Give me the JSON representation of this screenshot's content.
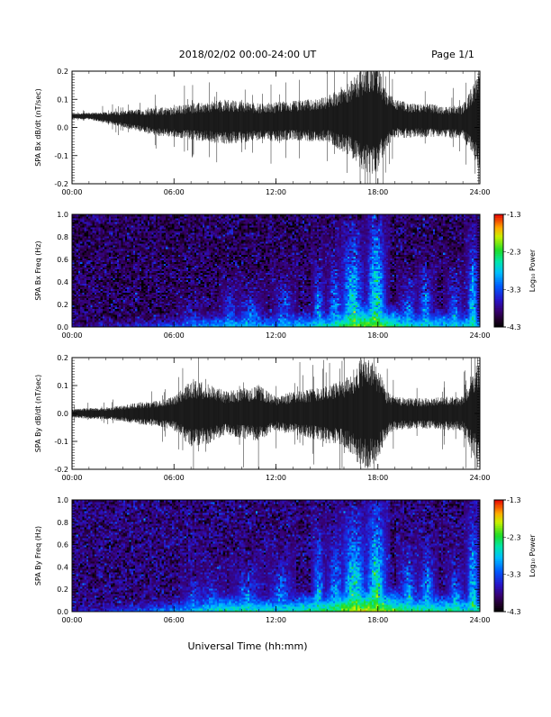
{
  "header": {
    "title": "2018/02/02  00:00-24:00 UT",
    "page": "Page 1/1"
  },
  "footer": {
    "xlabel": "Universal Time (hh:mm)"
  },
  "colorbar": {
    "label": "Log₁₀ Power",
    "range": [
      -4.3,
      -1.3
    ],
    "tick_labels": [
      "-1.3",
      "-2.3",
      "-3.3",
      "-4.3"
    ],
    "tick_values": [
      -1.3,
      -2.3,
      -3.3,
      -4.3
    ]
  },
  "chart_data": [
    {
      "type": "line",
      "id": "bx-wave",
      "ylabel": "SPA Bx dB/dt (nT/sec)",
      "xlabel": "",
      "x_ticks": [
        "00:00",
        "06:00",
        "12:00",
        "18:00",
        "24:00"
      ],
      "y_ticks": [
        "0.2",
        "0.1",
        "0.0",
        "-0.1",
        "-0.2"
      ],
      "xlim": [
        0,
        24
      ],
      "ylim": [
        -0.2,
        0.2
      ],
      "series": [
        {
          "x": [
            0,
            1,
            2,
            3,
            4,
            5,
            6,
            7,
            8,
            9,
            10,
            11,
            12,
            13,
            14,
            15,
            16,
            16.5,
            17,
            17.5,
            18,
            18.5,
            19,
            20,
            21,
            22,
            23,
            23.5,
            24
          ],
          "baseline": [
            0.04,
            0.04,
            0.035,
            0.03,
            0.025,
            0.02,
            0.02,
            0.02,
            0.02,
            0.02,
            0.02,
            0.02,
            0.02,
            0.025,
            0.025,
            0.03,
            0.03,
            0.03,
            0.03,
            0.03,
            0.03,
            0.03,
            0.03,
            0.025,
            0.025,
            0.02,
            0.02,
            0.02,
            0.02
          ],
          "amplitude": [
            0.01,
            0.012,
            0.02,
            0.03,
            0.04,
            0.05,
            0.055,
            0.065,
            0.07,
            0.08,
            0.075,
            0.065,
            0.07,
            0.07,
            0.075,
            0.08,
            0.12,
            0.14,
            0.18,
            0.2,
            0.19,
            0.1,
            0.07,
            0.06,
            0.06,
            0.055,
            0.06,
            0.12,
            0.18
          ]
        }
      ]
    },
    {
      "type": "heatmap",
      "id": "bx-spec",
      "ylabel": "SPA Bx Freq (Hz)",
      "xlabel": "",
      "x_ticks": [
        "00:00",
        "06:00",
        "12:00",
        "18:00",
        "24:00"
      ],
      "y_ticks": [
        "1.0",
        "0.8",
        "0.6",
        "0.4",
        "0.2",
        "0.0"
      ],
      "xlim": [
        0,
        24
      ],
      "ylim": [
        0,
        1.0
      ],
      "zlim": [
        -4.3,
        -1.3
      ],
      "background_level": -3.95,
      "low_freq_band": {
        "x": [
          0,
          3,
          6,
          9,
          12,
          15,
          17,
          18,
          20,
          24
        ],
        "level": [
          -3.7,
          -3.5,
          -3.2,
          -2.8,
          -2.9,
          -2.6,
          -2.0,
          -2.1,
          -2.6,
          -2.7
        ]
      },
      "bursts": [
        {
          "t": 7.0,
          "width": 0.5,
          "level": -3.1,
          "top": 0.35
        },
        {
          "t": 9.3,
          "width": 0.4,
          "level": -3.0,
          "top": 0.55
        },
        {
          "t": 10.5,
          "width": 0.6,
          "level": -2.9,
          "top": 0.5
        },
        {
          "t": 12.5,
          "width": 0.5,
          "level": -3.0,
          "top": 0.7
        },
        {
          "t": 14.5,
          "width": 0.3,
          "level": -2.9,
          "top": 0.95
        },
        {
          "t": 15.5,
          "width": 0.4,
          "level": -2.8,
          "top": 0.85
        },
        {
          "t": 16.5,
          "width": 0.6,
          "level": -2.4,
          "top": 0.95
        },
        {
          "t": 17.9,
          "width": 0.5,
          "level": -2.3,
          "top": 1.0
        },
        {
          "t": 19.8,
          "width": 0.4,
          "level": -2.8,
          "top": 0.6
        },
        {
          "t": 20.8,
          "width": 0.4,
          "level": -2.8,
          "top": 0.75
        },
        {
          "t": 22.5,
          "width": 0.4,
          "level": -2.9,
          "top": 0.7
        },
        {
          "t": 23.6,
          "width": 0.3,
          "level": -2.6,
          "top": 1.0
        }
      ]
    },
    {
      "type": "line",
      "id": "by-wave",
      "ylabel": "SPA By dB/dt (nT/sec)",
      "xlabel": "",
      "x_ticks": [
        "00:00",
        "06:00",
        "12:00",
        "18:00",
        "24:00"
      ],
      "y_ticks": [
        "0.2",
        "0.1",
        "0.0",
        "-0.1",
        "-0.2"
      ],
      "xlim": [
        0,
        24
      ],
      "ylim": [
        -0.2,
        0.2
      ],
      "series": [
        {
          "x": [
            0,
            1,
            2,
            3,
            4,
            5,
            6,
            7,
            8,
            9,
            10,
            11,
            12,
            13,
            14,
            15,
            16,
            16.5,
            17,
            17.5,
            18,
            18.5,
            19,
            20,
            21,
            22,
            23,
            23.5,
            24
          ],
          "baseline": [
            0.0,
            0.0,
            0.0,
            0.0,
            0.0,
            0.0,
            0.0,
            0.0,
            0.0,
            0.0,
            0.0,
            0.0,
            0.0,
            0.0,
            0.0,
            0.0,
            0.0,
            0.0,
            0.0,
            0.0,
            0.0,
            0.0,
            0.0,
            0.0,
            0.0,
            0.0,
            0.0,
            0.0,
            0.0
          ],
          "amplitude": [
            0.015,
            0.02,
            0.02,
            0.03,
            0.04,
            0.045,
            0.06,
            0.12,
            0.11,
            0.08,
            0.09,
            0.1,
            0.06,
            0.08,
            0.09,
            0.1,
            0.12,
            0.15,
            0.2,
            0.2,
            0.17,
            0.08,
            0.06,
            0.055,
            0.055,
            0.06,
            0.06,
            0.14,
            0.18
          ]
        }
      ]
    },
    {
      "type": "heatmap",
      "id": "by-spec",
      "ylabel": "SPA By Freq (Hz)",
      "xlabel": "",
      "x_ticks": [
        "00:00",
        "06:00",
        "12:00",
        "18:00",
        "24:00"
      ],
      "y_ticks": [
        "1.0",
        "0.8",
        "0.6",
        "0.4",
        "0.2",
        "0.0"
      ],
      "xlim": [
        0,
        24
      ],
      "ylim": [
        0,
        1.0
      ],
      "zlim": [
        -4.3,
        -1.3
      ],
      "background_level": -3.85,
      "low_freq_band": {
        "x": [
          0,
          3,
          6,
          9,
          12,
          15,
          17,
          18,
          20,
          24
        ],
        "level": [
          -3.6,
          -3.3,
          -3.0,
          -2.5,
          -2.6,
          -2.3,
          -1.8,
          -1.9,
          -2.4,
          -2.5
        ]
      },
      "bursts": [
        {
          "t": 7.2,
          "width": 0.5,
          "level": -3.0,
          "top": 0.45
        },
        {
          "t": 8.2,
          "width": 0.5,
          "level": -3.0,
          "top": 0.5
        },
        {
          "t": 10.3,
          "width": 0.6,
          "level": -2.8,
          "top": 0.55
        },
        {
          "t": 12.3,
          "width": 0.5,
          "level": -2.9,
          "top": 0.7
        },
        {
          "t": 14.5,
          "width": 0.3,
          "level": -2.7,
          "top": 0.95
        },
        {
          "t": 15.5,
          "width": 0.4,
          "level": -2.7,
          "top": 0.9
        },
        {
          "t": 16.6,
          "width": 0.6,
          "level": -2.3,
          "top": 0.95
        },
        {
          "t": 17.9,
          "width": 0.5,
          "level": -2.2,
          "top": 1.0
        },
        {
          "t": 19.8,
          "width": 0.4,
          "level": -2.7,
          "top": 0.7
        },
        {
          "t": 20.9,
          "width": 0.4,
          "level": -2.7,
          "top": 0.75
        },
        {
          "t": 22.6,
          "width": 0.4,
          "level": -2.8,
          "top": 0.6
        },
        {
          "t": 23.6,
          "width": 0.3,
          "level": -2.5,
          "top": 1.0
        }
      ]
    }
  ]
}
